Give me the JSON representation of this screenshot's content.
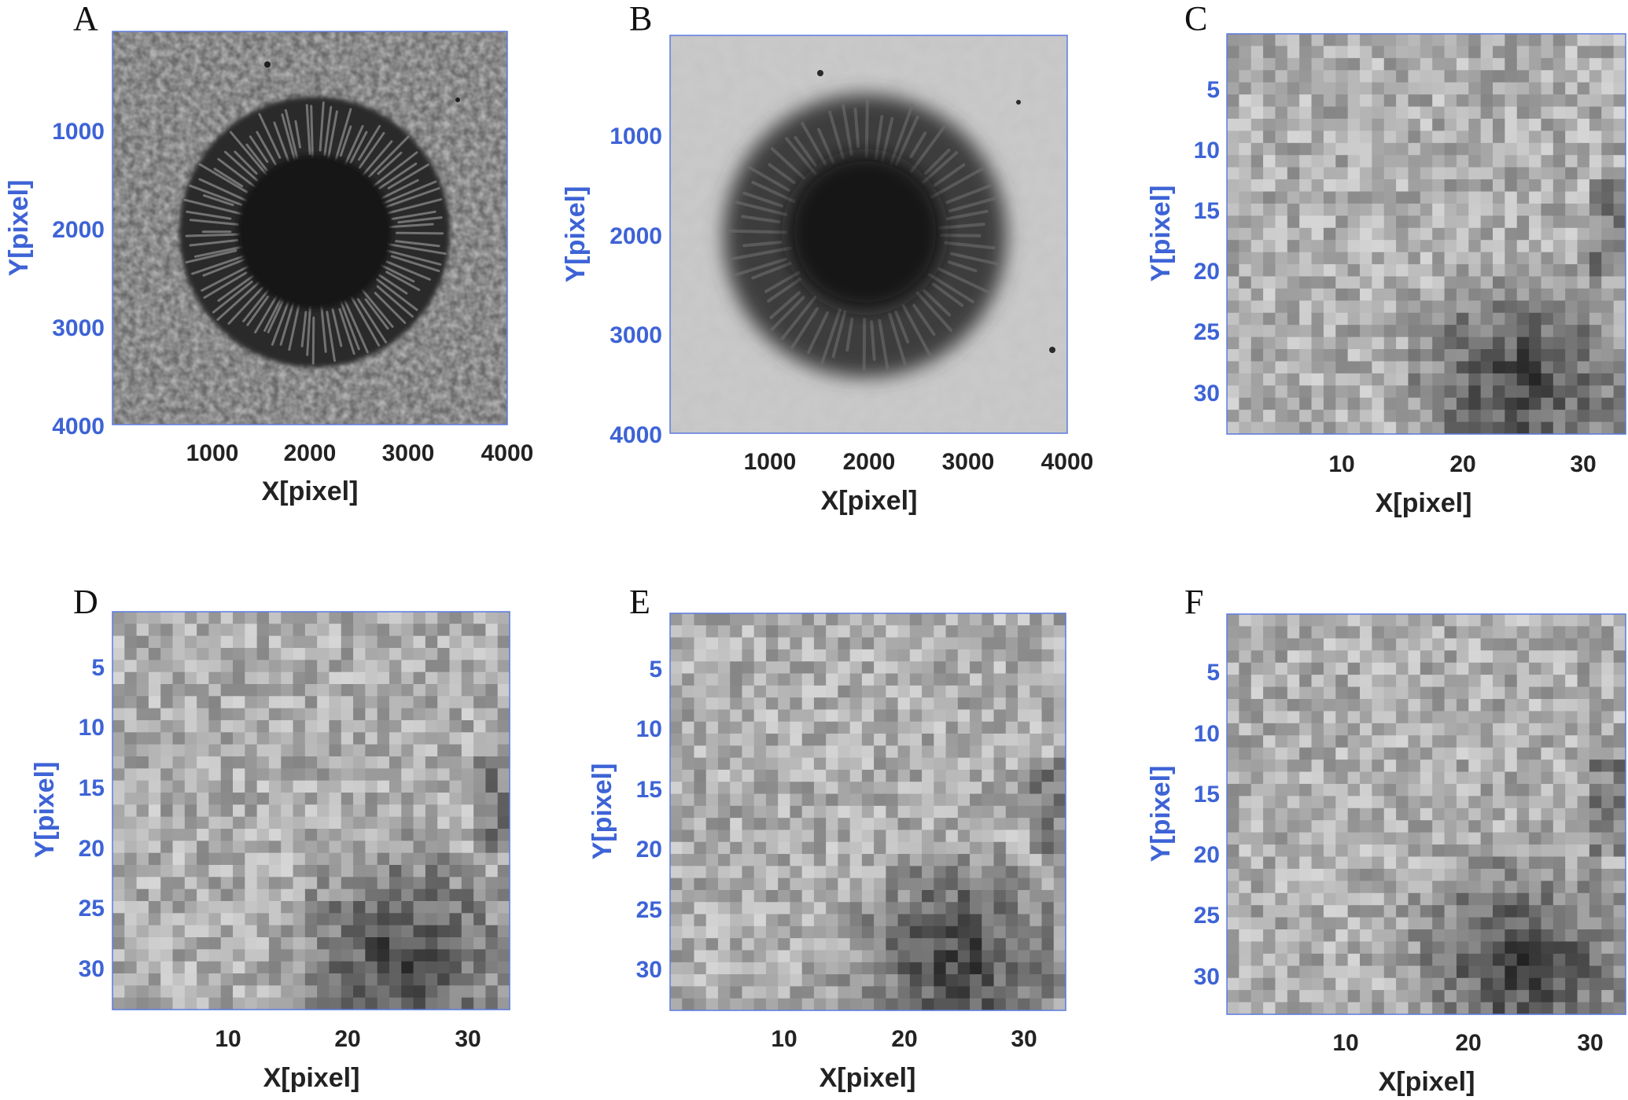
{
  "figure": {
    "colors": {
      "x_text": "#222222",
      "y_text": "#3d63d6",
      "axis_line": "#5b7be0"
    },
    "panels": [
      {
        "letter": "A",
        "kind": "sunspot-sharp",
        "xlabel": "X[pixel]",
        "ylabel": "Y[pixel]",
        "xticks": [
          "1000",
          "2000",
          "3000",
          "4000"
        ],
        "yticks": [
          "1000",
          "2000",
          "3000",
          "4000"
        ],
        "x_range": [
          0,
          4000
        ],
        "y_range": [
          0,
          4000
        ]
      },
      {
        "letter": "B",
        "kind": "sunspot-blurred",
        "xlabel": "X[pixel]",
        "ylabel": "Y[pixel]",
        "xticks": [
          "1000",
          "2000",
          "3000",
          "4000"
        ],
        "yticks": [
          "1000",
          "2000",
          "3000",
          "4000"
        ],
        "x_range": [
          0,
          4000
        ],
        "y_range": [
          0,
          4000
        ]
      },
      {
        "letter": "C",
        "kind": "patch",
        "xlabel": "X[pixel]",
        "ylabel": "Y[pixel]",
        "xticks": [
          "10",
          "20",
          "30"
        ],
        "yticks": [
          "5",
          "10",
          "15",
          "20",
          "25",
          "30"
        ],
        "x_range": [
          0.5,
          33.5
        ],
        "y_range": [
          0.5,
          33.5
        ]
      },
      {
        "letter": "D",
        "kind": "patch",
        "xlabel": "X[pixel]",
        "ylabel": "Y[pixel]",
        "xticks": [
          "10",
          "20",
          "30"
        ],
        "yticks": [
          "5",
          "10",
          "15",
          "20",
          "25",
          "30"
        ],
        "x_range": [
          0.5,
          33.5
        ],
        "y_range": [
          0.5,
          33.5
        ]
      },
      {
        "letter": "E",
        "kind": "patch",
        "xlabel": "X[pixel]",
        "ylabel": "Y[pixel]",
        "xticks": [
          "10",
          "20",
          "30"
        ],
        "yticks": [
          "5",
          "10",
          "15",
          "20",
          "25",
          "30"
        ],
        "x_range": [
          0.5,
          33.5
        ],
        "y_range": [
          0.5,
          33.5
        ]
      },
      {
        "letter": "F",
        "kind": "patch",
        "xlabel": "X[pixel]",
        "ylabel": "Y[pixel]",
        "xticks": [
          "10",
          "20",
          "30"
        ],
        "yticks": [
          "5",
          "10",
          "15",
          "20",
          "25",
          "30"
        ],
        "x_range": [
          0.5,
          33.5
        ],
        "y_range": [
          0.5,
          33.5
        ]
      }
    ]
  }
}
